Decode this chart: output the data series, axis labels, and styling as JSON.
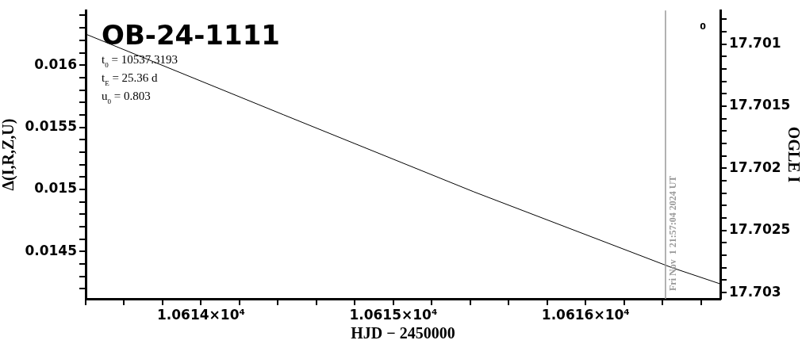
{
  "chart_data": {
    "type": "line",
    "title": "OB-24-1111",
    "xlabel": "HJD − 2450000",
    "ylabel": "Δ(I,R,Z,U)",
    "y2label": "OGLE I",
    "annotations": [
      "t$_{0}$ = 10537.3193",
      "t$_{E}$ = 25.36 d",
      "u$_{0}$ = 0.803",
      "Fri Nov  1 21:57:04 2024 UT",
      "0"
    ],
    "series": [
      {
        "color": "#000000",
        "x": [
          10613.4,
          10614.43,
          10615.42,
          10616.45,
          10616.7
        ],
        "values": [
          0.01625,
          0.0156,
          0.01498,
          0.01437,
          0.01424
        ]
      }
    ],
    "marker": "none",
    "line_style": "solid",
    "grid": false,
    "legend": false,
    "xlim": [
      10613.4,
      10616.7
    ],
    "xticks": [
      {
        "value": 10613.4,
        "label": null
      },
      {
        "value": 10613.6,
        "label": null
      },
      {
        "value": 10613.8,
        "label": null
      },
      {
        "value": 10614,
        "label": "1.0614×10⁴"
      },
      {
        "value": 10614.2,
        "label": null
      },
      {
        "value": 10614.4,
        "label": null
      },
      {
        "value": 10614.6,
        "label": null
      },
      {
        "value": 10614.8,
        "label": null
      },
      {
        "value": 10615,
        "label": "1.0615×10⁴"
      },
      {
        "value": 10615.2,
        "label": null
      },
      {
        "value": 10615.4,
        "label": null
      },
      {
        "value": 10615.6,
        "label": null
      },
      {
        "value": 10615.8,
        "label": null
      },
      {
        "value": 10616,
        "label": "1.0616×10⁴"
      },
      {
        "value": 10616.2,
        "label": null
      },
      {
        "value": 10616.4,
        "label": null
      },
      {
        "value": 10616.6,
        "label": null
      }
    ],
    "ylim": [
      0.01412,
      0.01644
    ],
    "yticks": [
      {
        "value": 0.0142,
        "label": null
      },
      {
        "value": 0.0143,
        "label": null
      },
      {
        "value": 0.0144,
        "label": null
      },
      0.0145,
      {
        "value": 0.0146,
        "label": null
      },
      {
        "value": 0.0147,
        "label": null
      },
      {
        "value": 0.0148,
        "label": null
      },
      {
        "value": 0.0149,
        "label": null
      },
      0.015,
      {
        "value": 0.0151,
        "label": null
      },
      {
        "value": 0.0152,
        "label": null
      },
      {
        "value": 0.0153,
        "label": null
      },
      {
        "value": 0.0154,
        "label": null
      },
      0.0155,
      {
        "value": 0.0156,
        "label": null
      },
      {
        "value": 0.0157,
        "label": null
      },
      {
        "value": 0.0158,
        "label": null
      },
      {
        "value": 0.0159,
        "label": null
      },
      0.016,
      {
        "value": 0.0161,
        "label": null
      },
      {
        "value": 0.0162,
        "label": null
      },
      {
        "value": 0.0163,
        "label": null
      },
      {
        "value": 0.0164,
        "label": null
      }
    ],
    "y2lim": [
      17.70305,
      17.70073
    ],
    "y2ticks": [
      17.703,
      {
        "value": 17.7029,
        "label": null
      },
      {
        "value": 17.7028,
        "label": null
      },
      {
        "value": 17.7027,
        "label": null
      },
      {
        "value": 17.7026,
        "label": null
      },
      17.7025,
      {
        "value": 17.7024,
        "label": null
      },
      {
        "value": 17.7023,
        "label": null
      },
      {
        "value": 17.7022,
        "label": null
      },
      {
        "value": 17.7021,
        "label": null
      },
      17.702,
      {
        "value": 17.7019,
        "label": null
      },
      {
        "value": 17.7018,
        "label": null
      },
      {
        "value": 17.7017,
        "label": null
      },
      {
        "value": 17.7016,
        "label": null
      },
      17.7015,
      {
        "value": 17.7014,
        "label": null
      },
      {
        "value": 17.7013,
        "label": null
      },
      {
        "value": 17.7012,
        "label": null
      },
      {
        "value": 17.7011,
        "label": null
      },
      17.701,
      {
        "value": 17.7009,
        "label": null
      },
      {
        "value": 17.7008,
        "label": null
      }
    ],
    "ref_lines": [
      {
        "axis": "x",
        "value": 10616.415,
        "color": "#999999"
      }
    ]
  }
}
